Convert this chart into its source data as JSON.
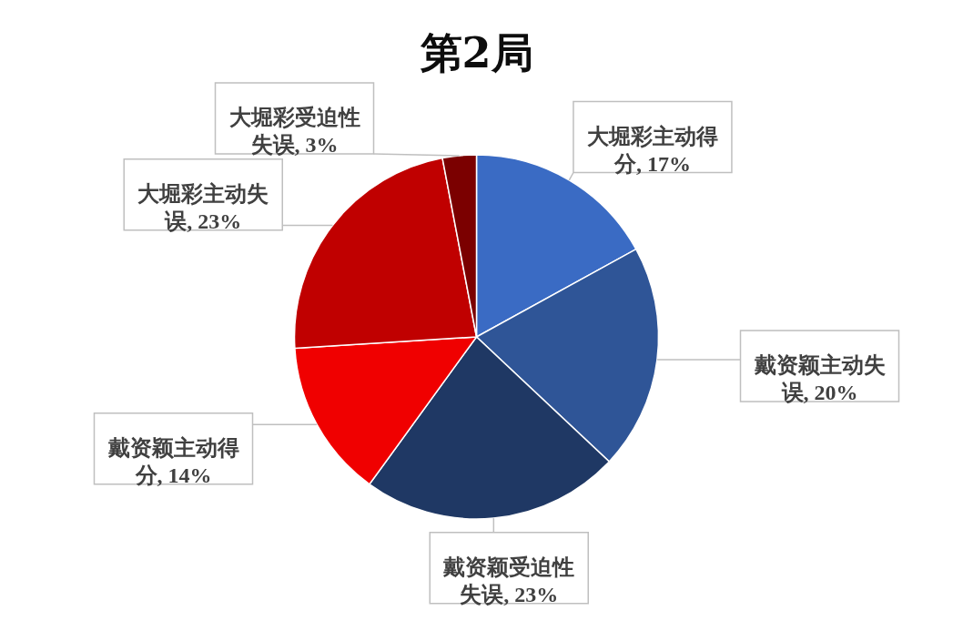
{
  "chart_data": {
    "type": "pie",
    "title": "第2局",
    "categories": [
      "大堀彩主动得分",
      "戴资颖主动失误",
      "戴资颖受迫性失误",
      "戴资颖主动得分",
      "大堀彩主动失误",
      "大堀彩受迫性失误"
    ],
    "values": [
      17,
      20,
      23,
      14,
      23,
      3
    ],
    "value_labels": [
      "17%",
      "20%",
      "23%",
      "14%",
      "23%",
      "3%"
    ],
    "colors": [
      "#3a6bc4",
      "#2f5597",
      "#1f3864",
      "#f00000",
      "#c00000",
      "#7b0000"
    ]
  }
}
